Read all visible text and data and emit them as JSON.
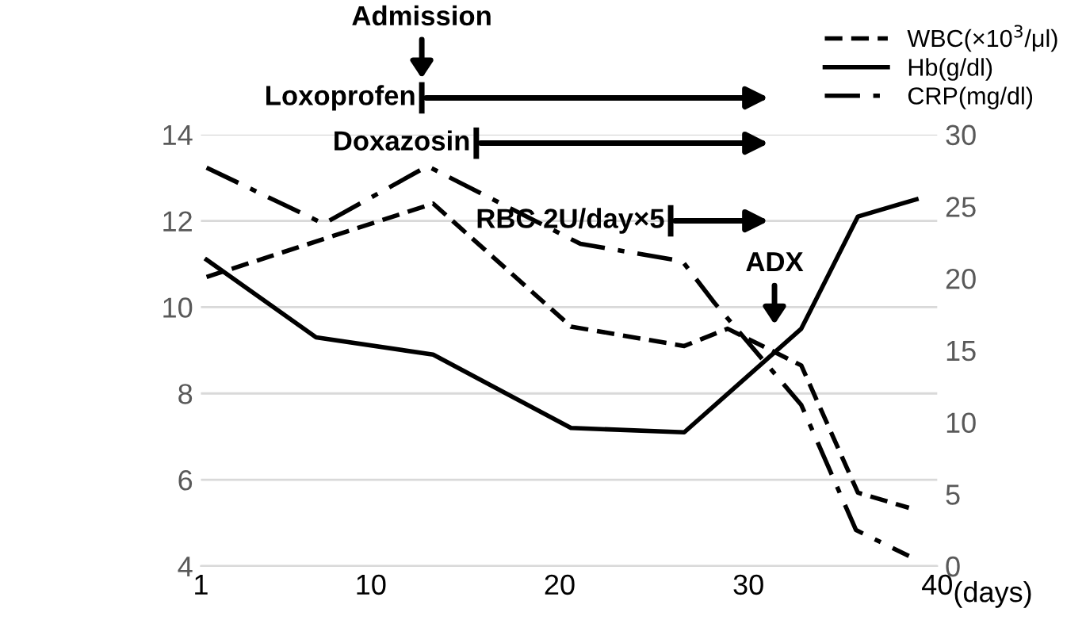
{
  "chart_data": {
    "type": "line",
    "xlabel": "(days)",
    "xlim": [
      1,
      40
    ],
    "xticks": [
      1,
      10,
      20,
      30,
      40
    ],
    "ylim": [
      4,
      14
    ],
    "yticks": [
      4,
      6,
      8,
      10,
      12,
      14
    ],
    "y2lim": [
      0,
      30
    ],
    "y2ticks": [
      0,
      5,
      10,
      15,
      20,
      25,
      30
    ],
    "grid": "y",
    "marker": "none",
    "legend": "top right",
    "series": [
      {
        "name": "WBC(×10$^{3}$/μl)",
        "color": "#000000",
        "line_style": "dashed",
        "x": [
          1.3,
          13.3,
          20.6,
          26.6,
          28.9,
          32.8,
          35.8,
          38.5
        ],
        "values": [
          10.7,
          12.4,
          9.55,
          9.1,
          9.5,
          8.65,
          5.7,
          5.35
        ]
      },
      {
        "name": "Hb(g/dl)",
        "color": "#000000",
        "line_style": "solid",
        "x": [
          1.3,
          7.1,
          13.3,
          20.6,
          26.6,
          32.8,
          35.8,
          38.9
        ],
        "values": [
          11.1,
          9.3,
          8.9,
          7.2,
          7.1,
          9.5,
          12.1,
          12.5
        ]
      },
      {
        "name": "CRP(mg/dl)",
        "color": "#000000",
        "line_style": "dashdot",
        "axis": "y2",
        "x": [
          1.3,
          7.5,
          13.0,
          21.1,
          26.5,
          28.2,
          32.8,
          35.7,
          38.5
        ],
        "values": [
          27.7,
          23.8,
          27.8,
          22.4,
          21.2,
          18.3,
          11.2,
          2.5,
          0.7
        ]
      }
    ],
    "annotations": [
      "Admission",
      "Loxoprofen",
      "Doxazosin",
      "RBC 2U/day×5",
      "ADX"
    ]
  }
}
